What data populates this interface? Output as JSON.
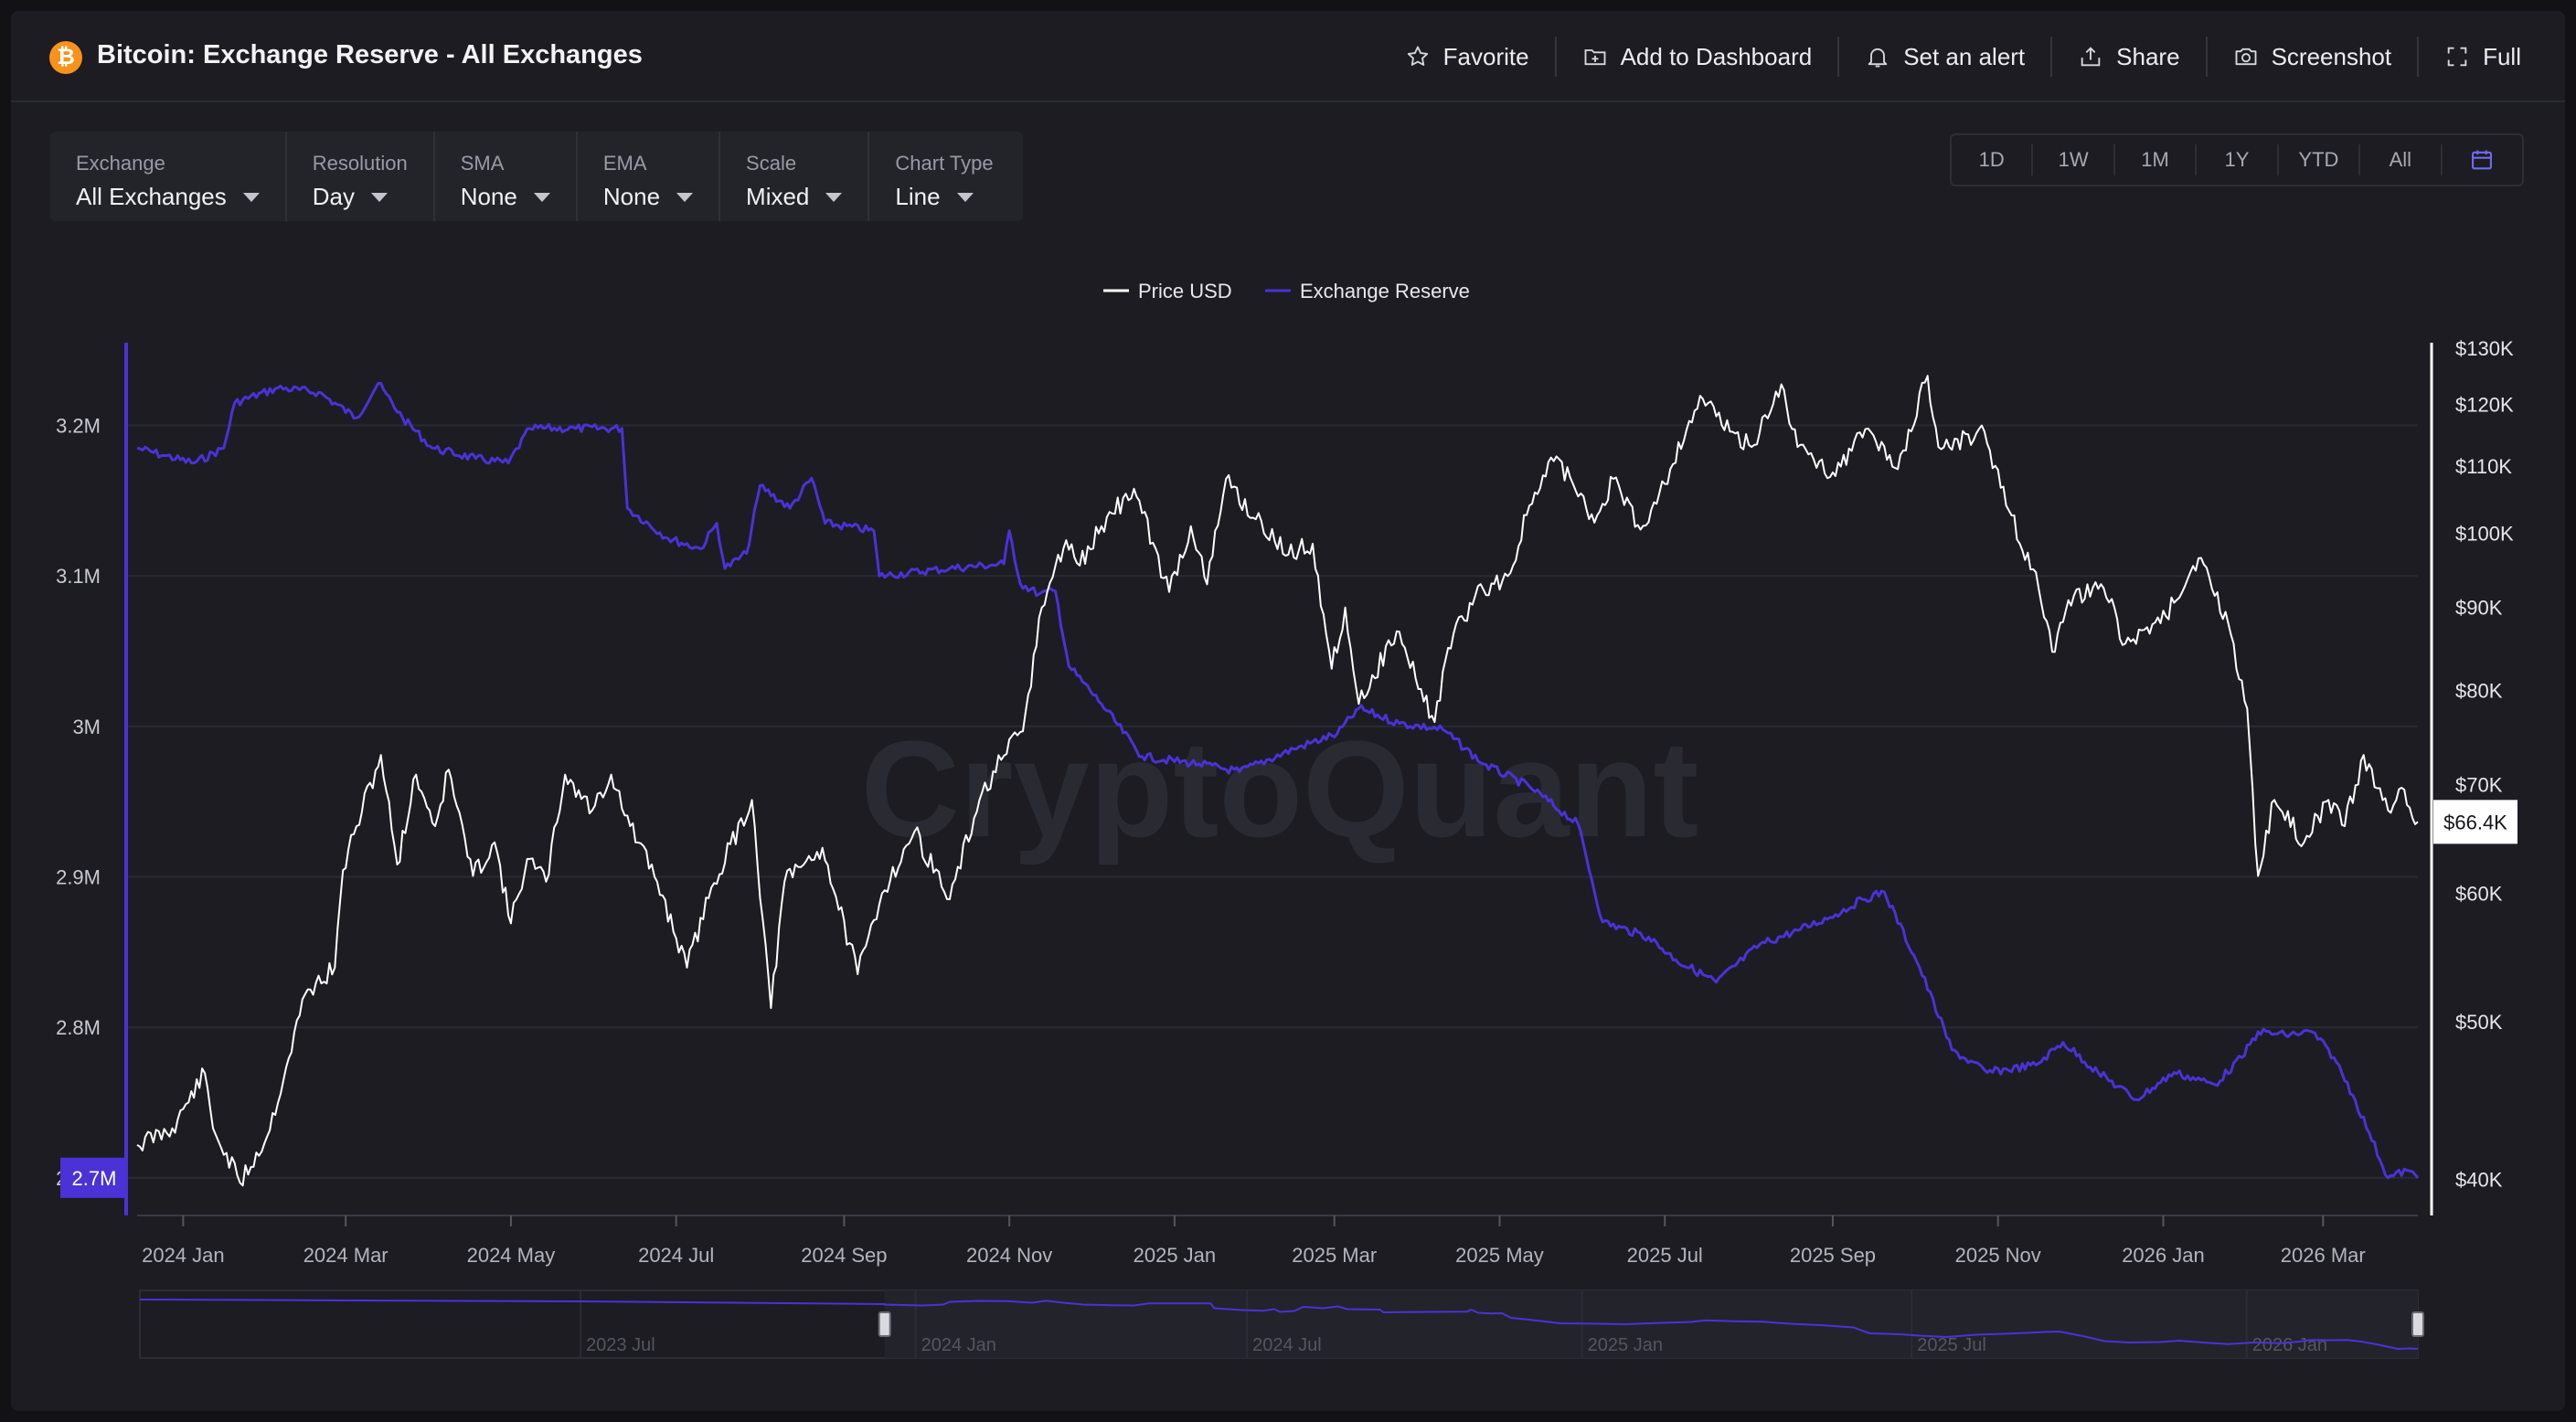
{
  "page": {
    "title": "Bitcoin: Exchange Reserve - All Exchanges",
    "logo_glyph": "₿",
    "brand_color": "#f7931a"
  },
  "actions": [
    {
      "label": "Favorite",
      "icon": "star-icon"
    },
    {
      "label": "Add to Dashboard",
      "icon": "dashboard-add-icon"
    },
    {
      "label": "Set an alert",
      "icon": "bell-icon"
    },
    {
      "label": "Share",
      "icon": "share-icon"
    },
    {
      "label": "Screenshot",
      "icon": "camera-icon"
    },
    {
      "label": "Full",
      "icon": "fullscreen-icon"
    }
  ],
  "controls": [
    {
      "label": "Exchange",
      "value": "All Exchanges"
    },
    {
      "label": "Resolution",
      "value": "Day"
    },
    {
      "label": "SMA",
      "value": "None"
    },
    {
      "label": "EMA",
      "value": "None"
    },
    {
      "label": "Scale",
      "value": "Mixed"
    },
    {
      "label": "Chart Type",
      "value": "Line"
    }
  ],
  "ranges": [
    "1D",
    "1W",
    "1M",
    "1Y",
    "YTD",
    "All"
  ],
  "watermark": "CryptoQuant",
  "colors": {
    "price": "#ffffff",
    "reserve": "#4a32d6",
    "reserve_badge": "#4a32d6",
    "calendar_icon": "#6f6cf0"
  },
  "chart_data": {
    "type": "line",
    "legend": [
      "Price USD",
      "Exchange Reserve"
    ],
    "legend_position": "top-center",
    "x_start": "2023-12-15",
    "x_end": "2026-04-05",
    "x_ticks": [
      {
        "date": "2024-01-01",
        "label": "2024 Jan"
      },
      {
        "date": "2024-03-01",
        "label": "2024 Mar"
      },
      {
        "date": "2024-05-01",
        "label": "2024 May"
      },
      {
        "date": "2024-07-01",
        "label": "2024 Jul"
      },
      {
        "date": "2024-09-01",
        "label": "2024 Sep"
      },
      {
        "date": "2024-11-01",
        "label": "2024 Nov"
      },
      {
        "date": "2025-01-01",
        "label": "2025 Jan"
      },
      {
        "date": "2025-03-01",
        "label": "2025 Mar"
      },
      {
        "date": "2025-05-01",
        "label": "2025 May"
      },
      {
        "date": "2025-07-01",
        "label": "2025 Jul"
      },
      {
        "date": "2025-09-01",
        "label": "2025 Sep"
      },
      {
        "date": "2025-11-01",
        "label": "2025 Nov"
      },
      {
        "date": "2026-01-01",
        "label": "2026 Jan"
      },
      {
        "date": "2026-03-01",
        "label": "2026 Mar"
      }
    ],
    "left_axis": {
      "name": "Exchange Reserve",
      "scale": "linear",
      "ylim": [
        2.675,
        3.255
      ],
      "ticks": [
        {
          "value": 2.7,
          "label": "2.7M"
        },
        {
          "value": 2.8,
          "label": "2.8M"
        },
        {
          "value": 2.9,
          "label": "2.9M"
        },
        {
          "value": 3.0,
          "label": "3M"
        },
        {
          "value": 3.1,
          "label": "3.1M"
        },
        {
          "value": 3.2,
          "label": "3.2M"
        }
      ],
      "current_label": "2.7M"
    },
    "right_axis": {
      "name": "Price USD",
      "scale": "log",
      "ylim": [
        38000,
        131000
      ],
      "ticks": [
        {
          "value": 40000,
          "label": "$40K"
        },
        {
          "value": 50000,
          "label": "$50K"
        },
        {
          "value": 60000,
          "label": "$60K"
        },
        {
          "value": 70000,
          "label": "$70K"
        },
        {
          "value": 80000,
          "label": "$80K"
        },
        {
          "value": 90000,
          "label": "$90K"
        },
        {
          "value": 100000,
          "label": "$100K"
        },
        {
          "value": 110000,
          "label": "$110K"
        },
        {
          "value": 120000,
          "label": "$120K"
        },
        {
          "value": 130000,
          "label": "$130K"
        }
      ],
      "current_label": "$66.4K"
    },
    "grid": true,
    "series": [
      {
        "name": "Price USD",
        "axis": "right",
        "points": [
          [
            "2023-12-15",
            42000
          ],
          [
            "2023-12-28",
            43000
          ],
          [
            "2024-01-09",
            46500
          ],
          [
            "2024-01-12",
            43000
          ],
          [
            "2024-01-22",
            39800
          ],
          [
            "2024-02-01",
            42500
          ],
          [
            "2024-02-09",
            47500
          ],
          [
            "2024-02-15",
            52000
          ],
          [
            "2024-02-26",
            54000
          ],
          [
            "2024-02-29",
            62000
          ],
          [
            "2024-03-05",
            66000
          ],
          [
            "2024-03-14",
            73000
          ],
          [
            "2024-03-20",
            62500
          ],
          [
            "2024-03-27",
            71000
          ],
          [
            "2024-04-03",
            66000
          ],
          [
            "2024-04-08",
            71500
          ],
          [
            "2024-04-17",
            61500
          ],
          [
            "2024-04-25",
            64500
          ],
          [
            "2024-05-01",
            57500
          ],
          [
            "2024-05-07",
            63000
          ],
          [
            "2024-05-14",
            61000
          ],
          [
            "2024-05-21",
            71000
          ],
          [
            "2024-05-31",
            67500
          ],
          [
            "2024-06-07",
            71000
          ],
          [
            "2024-06-14",
            66000
          ],
          [
            "2024-06-24",
            61000
          ],
          [
            "2024-07-05",
            54000
          ],
          [
            "2024-07-14",
            60500
          ],
          [
            "2024-07-29",
            68500
          ],
          [
            "2024-08-05",
            51000
          ],
          [
            "2024-08-10",
            61000
          ],
          [
            "2024-08-24",
            64000
          ],
          [
            "2024-09-06",
            53500
          ],
          [
            "2024-09-15",
            60000
          ],
          [
            "2024-09-27",
            65500
          ],
          [
            "2024-10-10",
            59500
          ],
          [
            "2024-10-21",
            68500
          ],
          [
            "2024-10-29",
            72500
          ],
          [
            "2024-11-06",
            75500
          ],
          [
            "2024-11-13",
            90000
          ],
          [
            "2024-11-22",
            99000
          ],
          [
            "2024-11-27",
            95500
          ],
          [
            "2024-12-05",
            101000
          ],
          [
            "2024-12-17",
            106500
          ],
          [
            "2024-12-30",
            92000
          ],
          [
            "2025-01-07",
            101000
          ],
          [
            "2025-01-13",
            93000
          ],
          [
            "2025-01-20",
            108000
          ],
          [
            "2025-01-31",
            102000
          ],
          [
            "2025-02-12",
            97000
          ],
          [
            "2025-02-21",
            98500
          ],
          [
            "2025-02-28",
            82500
          ],
          [
            "2025-03-05",
            90000
          ],
          [
            "2025-03-10",
            78500
          ],
          [
            "2025-03-24",
            87000
          ],
          [
            "2025-04-07",
            76500
          ],
          [
            "2025-04-12",
            85000
          ],
          [
            "2025-04-22",
            91500
          ],
          [
            "2025-05-05",
            94500
          ],
          [
            "2025-05-12",
            104000
          ],
          [
            "2025-05-22",
            111500
          ],
          [
            "2025-06-05",
            101500
          ],
          [
            "2025-06-12",
            108000
          ],
          [
            "2025-06-22",
            100500
          ],
          [
            "2025-07-03",
            109500
          ],
          [
            "2025-07-14",
            121500
          ],
          [
            "2025-07-25",
            115500
          ],
          [
            "2025-08-02",
            113000
          ],
          [
            "2025-08-13",
            123500
          ],
          [
            "2025-08-19",
            113000
          ],
          [
            "2025-09-01",
            109000
          ],
          [
            "2025-09-14",
            116000
          ],
          [
            "2025-09-25",
            109500
          ],
          [
            "2025-10-06",
            125000
          ],
          [
            "2025-10-10",
            113000
          ],
          [
            "2025-10-27",
            115500
          ],
          [
            "2025-11-04",
            104000
          ],
          [
            "2025-11-14",
            95000
          ],
          [
            "2025-11-21",
            84500
          ],
          [
            "2025-11-29",
            91500
          ],
          [
            "2025-12-10",
            92500
          ],
          [
            "2025-12-18",
            85500
          ],
          [
            "2025-12-31",
            88000
          ],
          [
            "2026-01-14",
            96500
          ],
          [
            "2026-01-25",
            88000
          ],
          [
            "2026-02-01",
            78000
          ],
          [
            "2026-02-05",
            61500
          ],
          [
            "2026-02-11",
            68500
          ],
          [
            "2026-02-22",
            64500
          ],
          [
            "2026-03-03",
            68500
          ],
          [
            "2026-03-09",
            66000
          ],
          [
            "2026-03-16",
            73000
          ],
          [
            "2026-03-25",
            67500
          ],
          [
            "2026-03-31",
            69500
          ],
          [
            "2026-04-05",
            66400
          ]
        ]
      },
      {
        "name": "Exchange Reserve",
        "axis": "left",
        "points": [
          [
            "2023-12-15",
            3.185
          ],
          [
            "2023-12-25",
            3.18
          ],
          [
            "2024-01-05",
            3.175
          ],
          [
            "2024-01-16",
            3.185
          ],
          [
            "2024-01-20",
            3.215
          ],
          [
            "2024-02-05",
            3.225
          ],
          [
            "2024-02-20",
            3.222
          ],
          [
            "2024-03-05",
            3.205
          ],
          [
            "2024-03-13",
            3.228
          ],
          [
            "2024-03-22",
            3.205
          ],
          [
            "2024-04-02",
            3.185
          ],
          [
            "2024-04-18",
            3.178
          ],
          [
            "2024-04-30",
            3.175
          ],
          [
            "2024-05-08",
            3.198
          ],
          [
            "2024-05-25",
            3.198
          ],
          [
            "2024-06-11",
            3.198
          ],
          [
            "2024-06-13",
            3.145
          ],
          [
            "2024-06-28",
            3.125
          ],
          [
            "2024-07-10",
            3.118
          ],
          [
            "2024-07-16",
            3.135
          ],
          [
            "2024-07-19",
            3.105
          ],
          [
            "2024-07-27",
            3.115
          ],
          [
            "2024-08-01",
            3.16
          ],
          [
            "2024-08-12",
            3.145
          ],
          [
            "2024-08-20",
            3.165
          ],
          [
            "2024-08-25",
            3.135
          ],
          [
            "2024-09-12",
            3.13
          ],
          [
            "2024-09-14",
            3.1
          ],
          [
            "2024-10-10",
            3.105
          ],
          [
            "2024-10-30",
            3.108
          ],
          [
            "2024-11-01",
            3.13
          ],
          [
            "2024-11-05",
            3.095
          ],
          [
            "2024-11-12",
            3.088
          ],
          [
            "2024-11-18",
            3.09
          ],
          [
            "2024-11-23",
            3.04
          ],
          [
            "2024-12-05",
            3.015
          ],
          [
            "2024-12-20",
            2.98
          ],
          [
            "2025-01-10",
            2.975
          ],
          [
            "2025-01-25",
            2.97
          ],
          [
            "2025-02-14",
            2.985
          ],
          [
            "2025-03-02",
            2.995
          ],
          [
            "2025-03-10",
            3.012
          ],
          [
            "2025-03-25",
            3.002
          ],
          [
            "2025-04-10",
            2.998
          ],
          [
            "2025-04-25",
            2.975
          ],
          [
            "2025-05-12",
            2.96
          ],
          [
            "2025-05-30",
            2.935
          ],
          [
            "2025-06-08",
            2.87
          ],
          [
            "2025-06-25",
            2.86
          ],
          [
            "2025-07-05",
            2.845
          ],
          [
            "2025-07-20",
            2.83
          ],
          [
            "2025-08-05",
            2.855
          ],
          [
            "2025-08-20",
            2.865
          ],
          [
            "2025-09-02",
            2.875
          ],
          [
            "2025-09-12",
            2.885
          ],
          [
            "2025-09-20",
            2.89
          ],
          [
            "2025-10-03",
            2.84
          ],
          [
            "2025-10-15",
            2.785
          ],
          [
            "2025-10-28",
            2.77
          ],
          [
            "2025-11-15",
            2.775
          ],
          [
            "2025-11-25",
            2.79
          ],
          [
            "2025-12-08",
            2.77
          ],
          [
            "2025-12-22",
            2.752
          ],
          [
            "2026-01-05",
            2.77
          ],
          [
            "2026-01-20",
            2.762
          ],
          [
            "2026-01-30",
            2.78
          ],
          [
            "2026-02-05",
            2.797
          ],
          [
            "2026-02-15",
            2.795
          ],
          [
            "2026-02-25",
            2.797
          ],
          [
            "2026-03-05",
            2.78
          ],
          [
            "2026-03-12",
            2.755
          ],
          [
            "2026-03-18",
            2.73
          ],
          [
            "2026-03-25",
            2.7
          ],
          [
            "2026-04-01",
            2.705
          ],
          [
            "2026-04-05",
            2.7
          ]
        ]
      }
    ]
  },
  "navigator": {
    "labels": [
      "2023 Jul",
      "2024 Jan",
      "2024 Jul",
      "2025 Jan",
      "2025 Jul",
      "2026 Jan"
    ],
    "label_dates": [
      "2023-07-01",
      "2024-01-01",
      "2024-07-01",
      "2025-01-01",
      "2025-07-01",
      "2026-01-01"
    ],
    "start": "2022-11-01",
    "end": "2026-04-05",
    "window_start": "2023-12-15",
    "window_end": "2026-04-05"
  }
}
